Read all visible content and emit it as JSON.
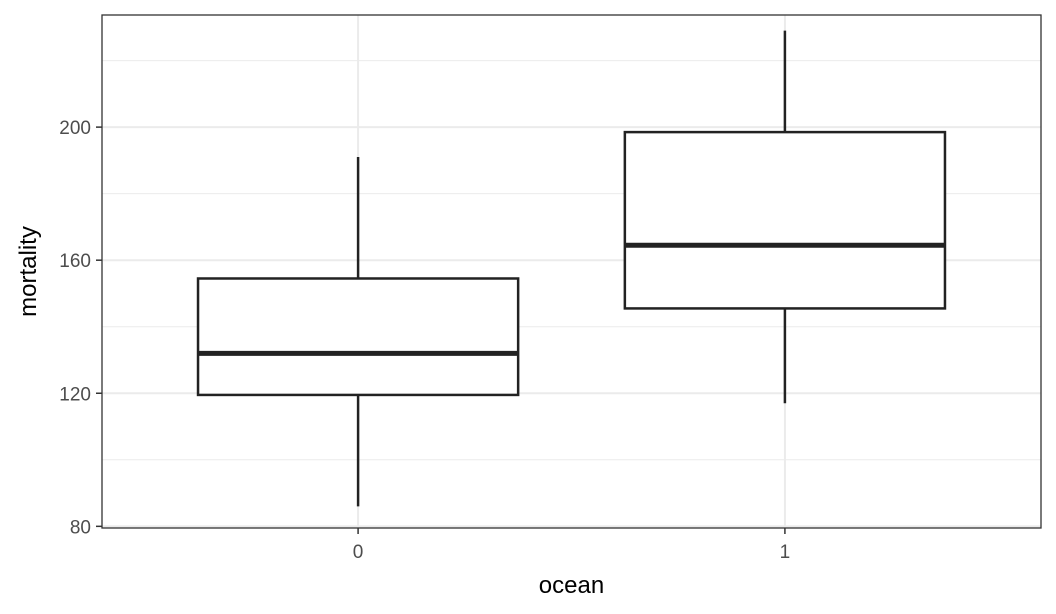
{
  "chart_data": {
    "type": "boxplot",
    "title": "",
    "xlabel": "ocean",
    "ylabel": "mortality",
    "categories": [
      "0",
      "1"
    ],
    "boxes": [
      {
        "category": "0",
        "min": 86,
        "q1": 119.5,
        "median": 132,
        "q3": 154.5,
        "max": 191
      },
      {
        "category": "1",
        "min": 117,
        "q1": 145.5,
        "median": 164.5,
        "q3": 198.5,
        "max": 229
      }
    ],
    "ylim": [
      79.5,
      233.7
    ],
    "yticks": [
      80,
      120,
      160,
      200
    ],
    "ytick_labels": [
      "80",
      "120",
      "160",
      "200"
    ],
    "grid": true,
    "theme": "black-and-white",
    "colors": {
      "box_fill": "#ffffff",
      "box_line": "#222222",
      "grid": "#ebebeb",
      "panel_border": "#333333"
    }
  }
}
